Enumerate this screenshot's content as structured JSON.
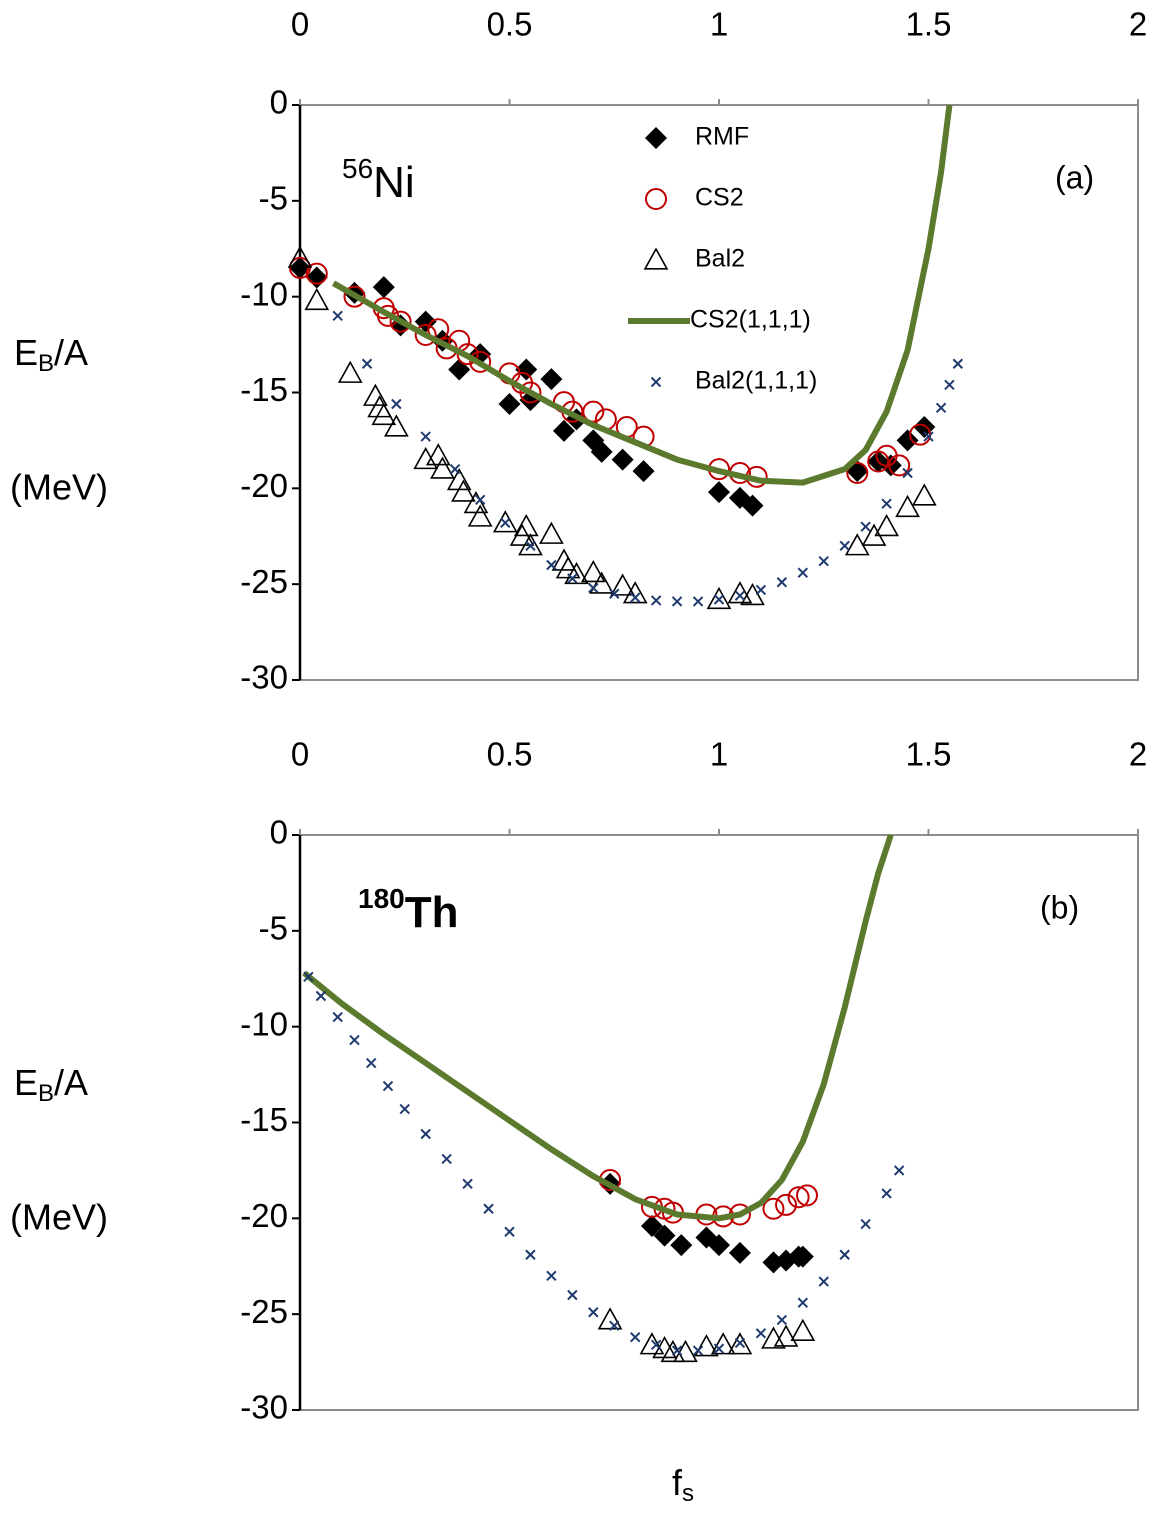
{
  "chart_data": [
    {
      "type": "scatter",
      "nucleus": {
        "mass": "56",
        "symbol": "Ni"
      },
      "panel_label": "(a)",
      "ylabel_parts": [
        "E",
        "B",
        "/A"
      ],
      "ylabel_unit": "(MeV)",
      "xlim": [
        0,
        2
      ],
      "xticks": [
        0,
        0.5,
        1,
        1.5,
        2
      ],
      "ylim": [
        -30,
        0
      ],
      "yticks": [
        0,
        -5,
        -10,
        -15,
        -20,
        -25,
        -30
      ],
      "legend": "top-center",
      "series": [
        {
          "name": "RMF",
          "style": "diamond",
          "color": "#000000",
          "x": [
            0,
            0.04,
            0.13,
            0.2,
            0.24,
            0.3,
            0.34,
            0.38,
            0.43,
            0.5,
            0.54,
            0.55,
            0.6,
            0.63,
            0.66,
            0.7,
            0.72,
            0.77,
            0.82,
            1.0,
            1.05,
            1.08,
            1.33,
            1.38,
            1.41,
            1.45,
            1.49
          ],
          "values": [
            -8.5,
            -9.0,
            -9.8,
            -9.5,
            -11.5,
            -11.3,
            -12.3,
            -13.8,
            -13.0,
            -15.6,
            -13.8,
            -15.4,
            -14.3,
            -17.0,
            -16.4,
            -17.5,
            -18.1,
            -18.5,
            -19.1,
            -20.2,
            -20.5,
            -20.9,
            -19.1,
            -18.6,
            -18.8,
            -17.5,
            -16.8
          ]
        },
        {
          "name": "CS2",
          "style": "circle",
          "color": "#c00000",
          "x": [
            0,
            0.04,
            0.13,
            0.2,
            0.21,
            0.24,
            0.3,
            0.33,
            0.35,
            0.38,
            0.4,
            0.43,
            0.5,
            0.53,
            0.55,
            0.63,
            0.65,
            0.7,
            0.73,
            0.78,
            0.82,
            1.0,
            1.05,
            1.09,
            1.33,
            1.38,
            1.4,
            1.43,
            1.48
          ],
          "values": [
            -8.5,
            -8.8,
            -10.0,
            -10.6,
            -11.0,
            -11.3,
            -12.0,
            -11.7,
            -12.7,
            -12.3,
            -13.0,
            -13.4,
            -14.0,
            -14.5,
            -15.0,
            -15.5,
            -16.0,
            -16.0,
            -16.4,
            -16.8,
            -17.3,
            -19.0,
            -19.2,
            -19.4,
            -19.2,
            -18.6,
            -18.3,
            -18.8,
            -17.2
          ]
        },
        {
          "name": "Bal2",
          "style": "triangle",
          "color": "#000000",
          "x": [
            0,
            0.04,
            0.12,
            0.18,
            0.19,
            0.2,
            0.23,
            0.3,
            0.33,
            0.34,
            0.38,
            0.39,
            0.42,
            0.43,
            0.49,
            0.53,
            0.54,
            0.55,
            0.6,
            0.63,
            0.64,
            0.66,
            0.7,
            0.72,
            0.77,
            0.8,
            1.0,
            1.05,
            1.08,
            1.33,
            1.37,
            1.4,
            1.45,
            1.49
          ],
          "values": [
            -8.0,
            -10.2,
            -14.0,
            -15.2,
            -15.8,
            -16.2,
            -16.8,
            -18.5,
            -18.3,
            -19.0,
            -19.6,
            -20.2,
            -20.8,
            -21.5,
            -21.8,
            -22.5,
            -22.0,
            -23.0,
            -22.4,
            -23.8,
            -24.2,
            -24.5,
            -24.4,
            -25.0,
            -25.1,
            -25.5,
            -25.8,
            -25.5,
            -25.6,
            -23.0,
            -22.5,
            -22.0,
            -21.0,
            -20.4
          ]
        },
        {
          "name": "CS2(1,1,1)",
          "style": "line",
          "color": "#5b7a2e",
          "x": [
            0.08,
            0.2,
            0.3,
            0.4,
            0.5,
            0.6,
            0.7,
            0.8,
            0.9,
            1.0,
            1.1,
            1.2,
            1.3,
            1.35,
            1.4,
            1.45,
            1.5,
            1.53,
            1.55
          ],
          "values": [
            -9.3,
            -10.8,
            -12.0,
            -13.1,
            -14.4,
            -15.6,
            -16.7,
            -17.6,
            -18.5,
            -19.1,
            -19.6,
            -19.7,
            -19.0,
            -18.0,
            -16.0,
            -12.8,
            -7.5,
            -3.5,
            0
          ]
        },
        {
          "name": "Bal2(1,1,1)",
          "style": "cross",
          "color": "#1f3a6e",
          "x": [
            0.09,
            0.16,
            0.23,
            0.3,
            0.37,
            0.43,
            0.49,
            0.55,
            0.6,
            0.65,
            0.7,
            0.75,
            0.8,
            0.85,
            0.9,
            0.95,
            1.0,
            1.05,
            1.1,
            1.15,
            1.2,
            1.25,
            1.3,
            1.35,
            1.4,
            1.45,
            1.5,
            1.53,
            1.55,
            1.57
          ],
          "values": [
            -11.0,
            -13.5,
            -15.6,
            -17.3,
            -19.0,
            -20.6,
            -21.8,
            -23.0,
            -24.0,
            -24.7,
            -25.2,
            -25.5,
            -25.7,
            -25.85,
            -25.9,
            -25.9,
            -25.8,
            -25.6,
            -25.3,
            -24.9,
            -24.4,
            -23.8,
            -23.0,
            -22.0,
            -20.8,
            -19.2,
            -17.3,
            -15.8,
            -14.6,
            -13.5
          ]
        }
      ]
    },
    {
      "type": "scatter",
      "nucleus": {
        "mass": "180",
        "symbol": "Th"
      },
      "panel_label": "(b)",
      "ylabel_parts": [
        "E",
        "B",
        "/A"
      ],
      "ylabel_unit": "(MeV)",
      "xlabel_parts": [
        "f",
        "s"
      ],
      "xlim": [
        0,
        2
      ],
      "xticks": [
        0,
        0.5,
        1,
        1.5,
        2
      ],
      "ylim": [
        -30,
        0
      ],
      "yticks": [
        0,
        -5,
        -10,
        -15,
        -20,
        -25,
        -30
      ],
      "series": [
        {
          "style": "diamond",
          "color": "#000000",
          "x": [
            0.74,
            0.84,
            0.87,
            0.91,
            0.97,
            1.0,
            1.05,
            1.13,
            1.16,
            1.19,
            1.2
          ],
          "values": [
            -18.2,
            -20.4,
            -20.9,
            -21.4,
            -21.0,
            -21.4,
            -21.8,
            -22.3,
            -22.2,
            -22.0,
            -22.0
          ]
        },
        {
          "style": "circle",
          "color": "#c00000",
          "x": [
            0.74,
            0.84,
            0.87,
            0.89,
            0.97,
            1.01,
            1.05,
            1.13,
            1.16,
            1.19,
            1.21
          ],
          "values": [
            -18.0,
            -19.4,
            -19.5,
            -19.7,
            -19.8,
            -19.9,
            -19.8,
            -19.5,
            -19.3,
            -18.9,
            -18.8
          ]
        },
        {
          "style": "triangle",
          "color": "#000000",
          "x": [
            0.74,
            0.84,
            0.87,
            0.89,
            0.92,
            0.97,
            1.01,
            1.05,
            1.13,
            1.16,
            1.2
          ],
          "values": [
            -25.3,
            -26.6,
            -26.8,
            -27.0,
            -27.0,
            -26.7,
            -26.6,
            -26.6,
            -26.3,
            -26.2,
            -25.9
          ]
        },
        {
          "style": "line",
          "color": "#5b7a2e",
          "x": [
            0.01,
            0.1,
            0.2,
            0.3,
            0.4,
            0.5,
            0.6,
            0.7,
            0.8,
            0.9,
            1.0,
            1.05,
            1.1,
            1.15,
            1.2,
            1.25,
            1.3,
            1.35,
            1.38,
            1.41
          ],
          "values": [
            -7.2,
            -8.8,
            -10.4,
            -11.9,
            -13.4,
            -14.9,
            -16.4,
            -17.8,
            -19.0,
            -19.8,
            -20.0,
            -19.8,
            -19.2,
            -18.0,
            -16.0,
            -13.0,
            -9.0,
            -4.5,
            -2.0,
            0
          ]
        },
        {
          "style": "cross",
          "color": "#1f3a6e",
          "x": [
            0.02,
            0.05,
            0.09,
            0.13,
            0.17,
            0.21,
            0.25,
            0.3,
            0.35,
            0.4,
            0.45,
            0.5,
            0.55,
            0.6,
            0.65,
            0.7,
            0.75,
            0.8,
            0.85,
            0.9,
            0.95,
            1.0,
            1.05,
            1.1,
            1.15,
            1.2,
            1.25,
            1.3,
            1.35,
            1.4,
            1.43
          ],
          "values": [
            -7.4,
            -8.4,
            -9.5,
            -10.7,
            -11.9,
            -13.1,
            -14.3,
            -15.6,
            -16.9,
            -18.2,
            -19.5,
            -20.7,
            -21.9,
            -23.0,
            -24.0,
            -24.9,
            -25.6,
            -26.2,
            -26.6,
            -26.9,
            -26.9,
            -26.8,
            -26.5,
            -26.0,
            -25.3,
            -24.4,
            -23.3,
            -21.9,
            -20.3,
            -18.7,
            -17.5
          ]
        }
      ]
    }
  ]
}
